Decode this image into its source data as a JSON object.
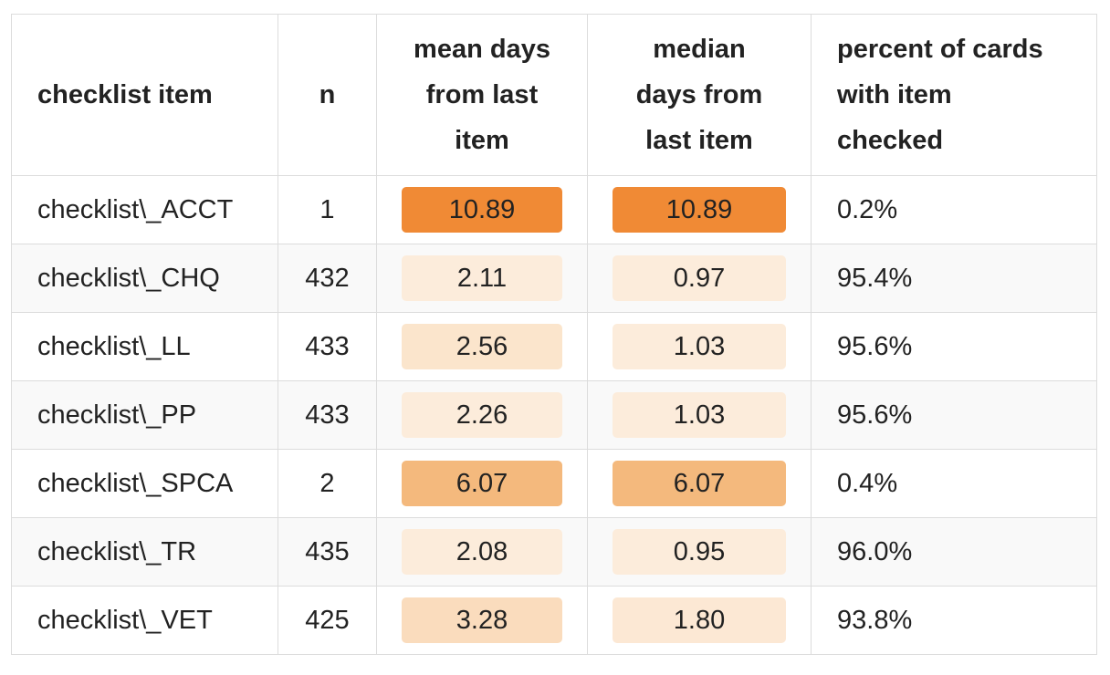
{
  "table": {
    "headers": {
      "item": "checklist item",
      "n": "n",
      "mean": [
        "mean days",
        "from last",
        "item"
      ],
      "median": [
        "median",
        "days from",
        "last item"
      ],
      "percent": [
        "percent of cards",
        "with item",
        "checked"
      ]
    },
    "rows": [
      {
        "item": "checklist\\_ACCT",
        "n": "1",
        "mean": "10.89",
        "median": "10.89",
        "percent": "0.2%",
        "mean_color": "#f08a35",
        "median_color": "#f08a35"
      },
      {
        "item": "checklist\\_CHQ",
        "n": "432",
        "mean": "2.11",
        "median": "0.97",
        "percent": "95.4%",
        "mean_color": "#fcecdb",
        "median_color": "#fcecdb"
      },
      {
        "item": "checklist\\_LL",
        "n": "433",
        "mean": "2.56",
        "median": "1.03",
        "percent": "95.6%",
        "mean_color": "#fbe5cc",
        "median_color": "#fcecdb"
      },
      {
        "item": "checklist\\_PP",
        "n": "433",
        "mean": "2.26",
        "median": "1.03",
        "percent": "95.6%",
        "mean_color": "#fcecdb",
        "median_color": "#fcecdb"
      },
      {
        "item": "checklist\\_SPCA",
        "n": "2",
        "mean": "6.07",
        "median": "6.07",
        "percent": "0.4%",
        "mean_color": "#f4b97d",
        "median_color": "#f4b97d"
      },
      {
        "item": "checklist\\_TR",
        "n": "435",
        "mean": "2.08",
        "median": "0.95",
        "percent": "96.0%",
        "mean_color": "#fcecdb",
        "median_color": "#fcecdb"
      },
      {
        "item": "checklist\\_VET",
        "n": "425",
        "mean": "3.28",
        "median": "1.80",
        "percent": "93.8%",
        "mean_color": "#fadcbd",
        "median_color": "#fce8d4"
      }
    ]
  }
}
